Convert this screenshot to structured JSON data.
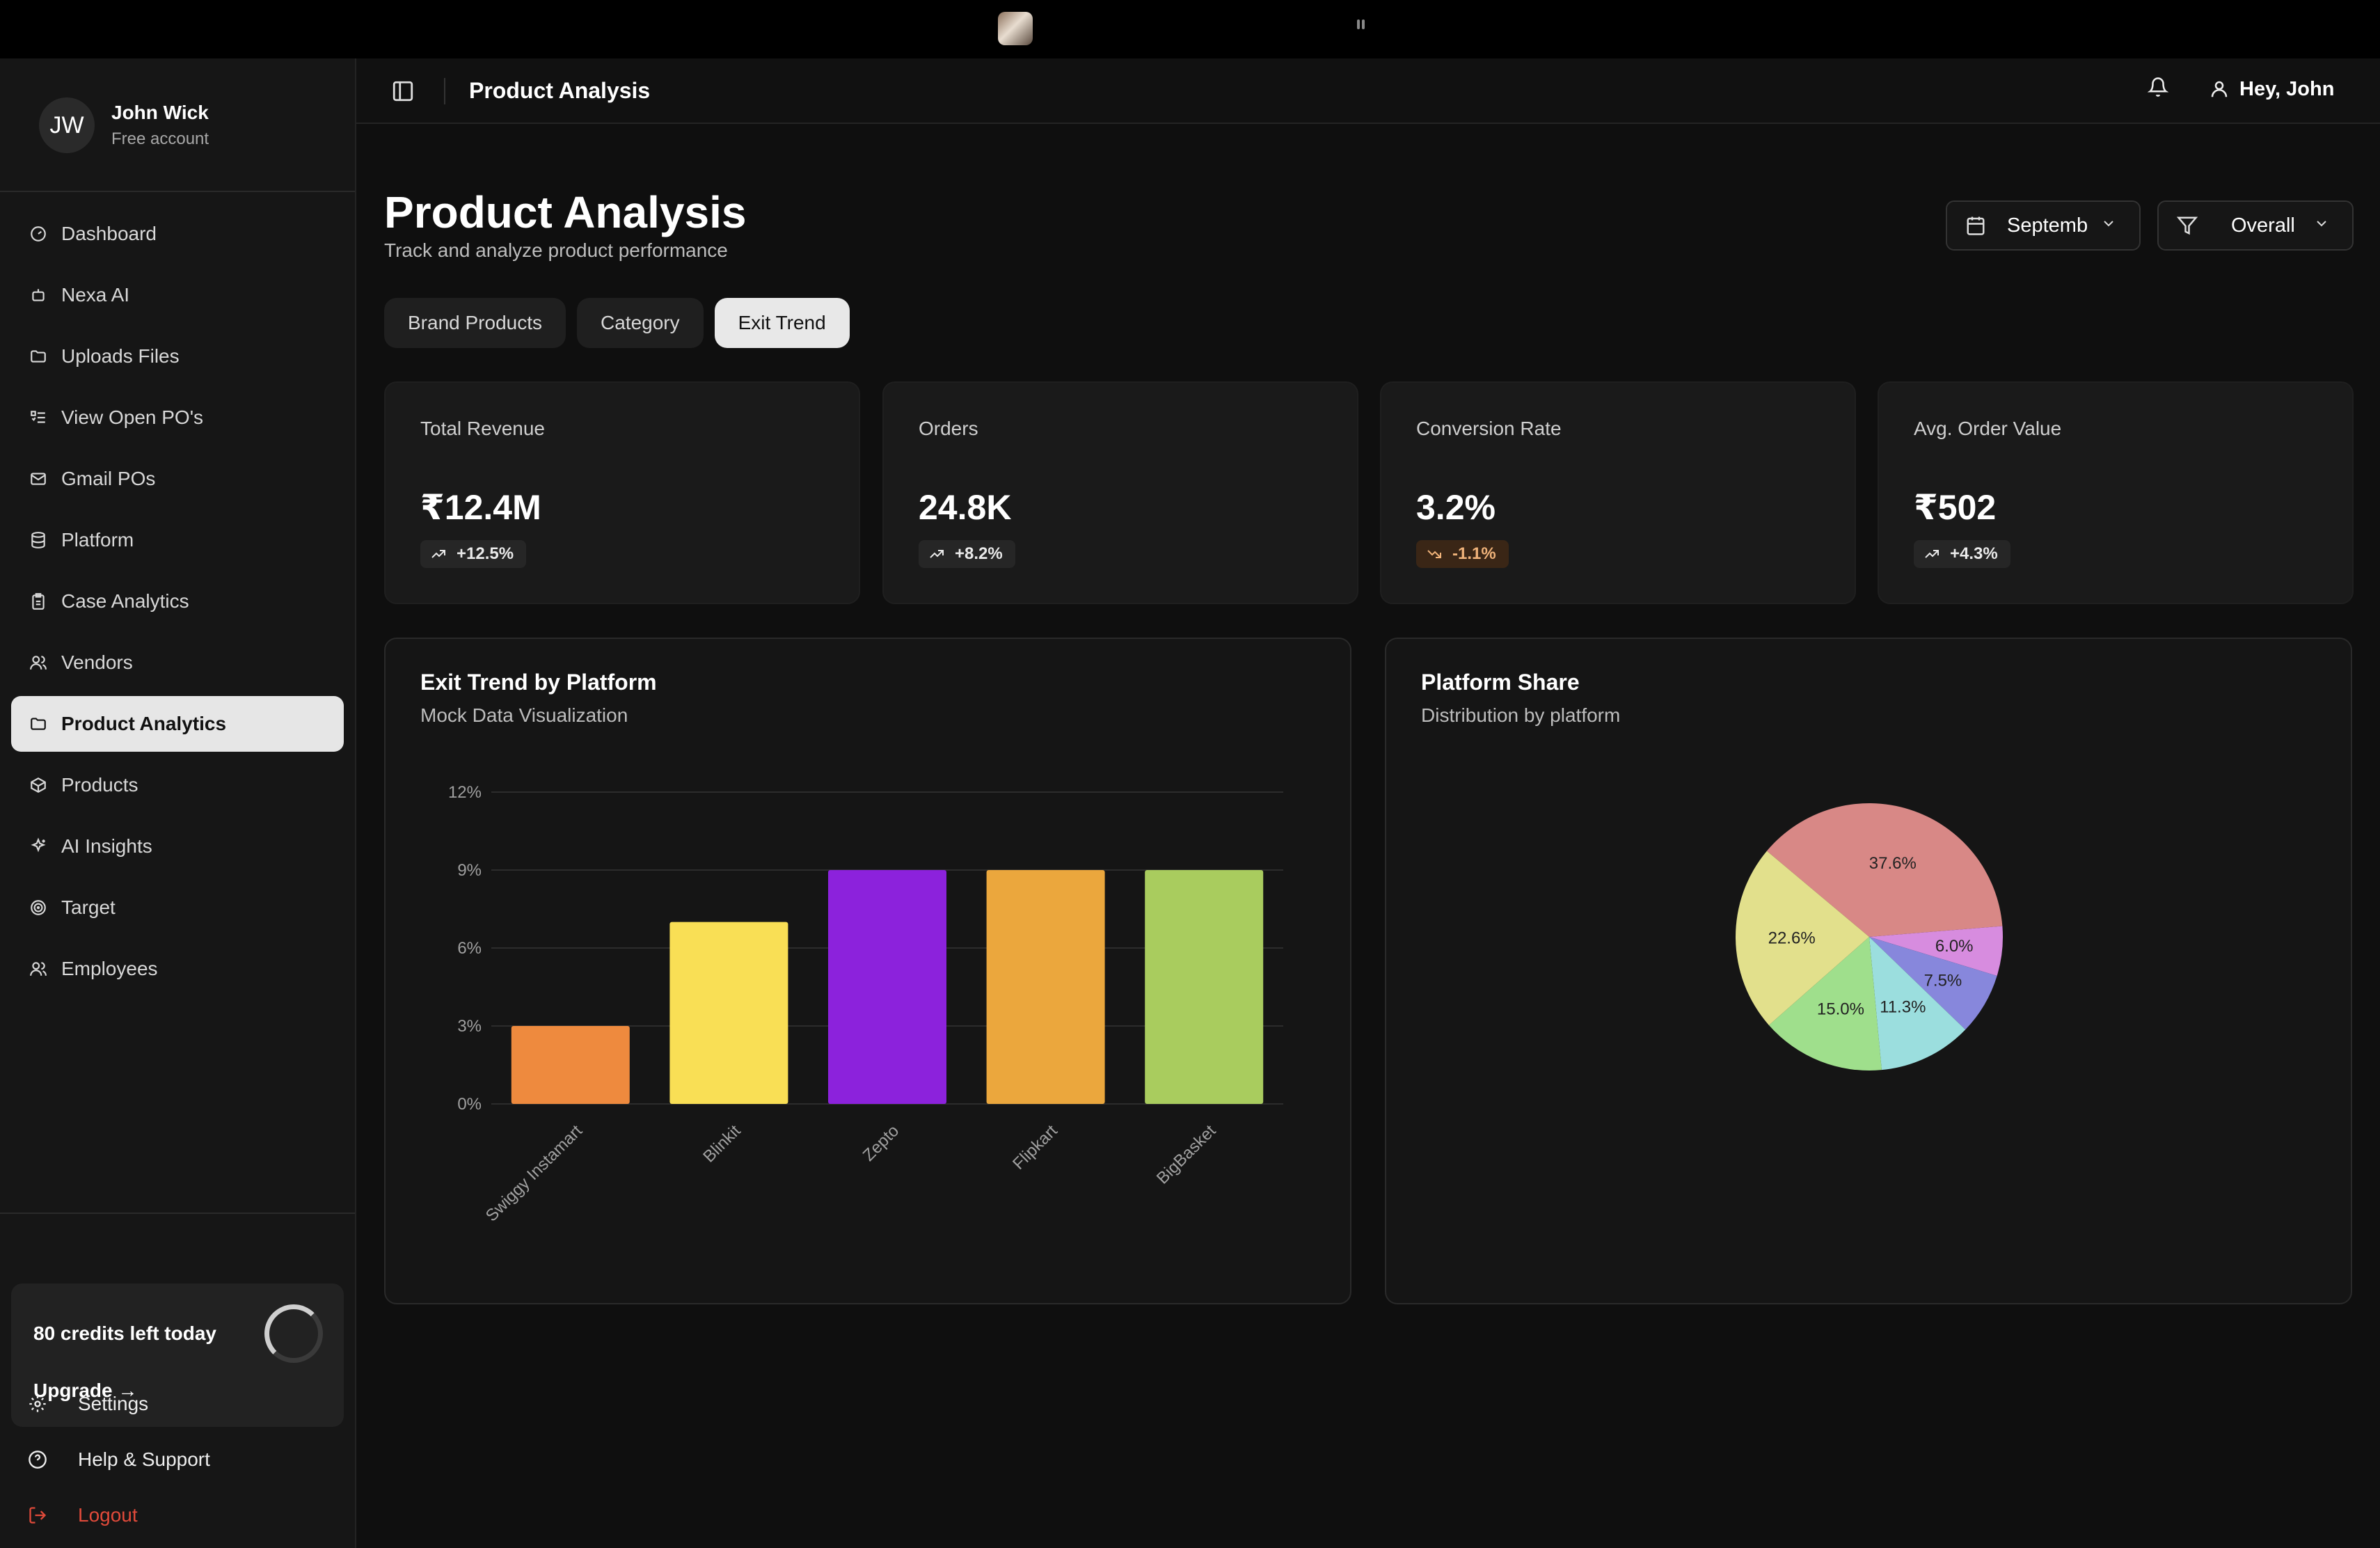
{
  "user": {
    "initials": "JW",
    "name": "John Wick",
    "plan": "Free account"
  },
  "nav": [
    {
      "label": "Dashboard",
      "icon": "gauge-icon"
    },
    {
      "label": "Nexa AI",
      "icon": "bot-icon"
    },
    {
      "label": "Uploads Files",
      "icon": "folder-icon"
    },
    {
      "label": "View Open PO's",
      "icon": "list-icon"
    },
    {
      "label": "Gmail POs",
      "icon": "mail-icon"
    },
    {
      "label": "Platform",
      "icon": "database-icon"
    },
    {
      "label": "Case Analytics",
      "icon": "clipboard-icon"
    },
    {
      "label": "Vendors",
      "icon": "users-icon"
    },
    {
      "label": "Product Analytics",
      "icon": "folder-icon",
      "active": true
    },
    {
      "label": "Products",
      "icon": "box-icon"
    },
    {
      "label": "AI Insights",
      "icon": "sparkles-icon"
    },
    {
      "label": "Target",
      "icon": "target-icon"
    },
    {
      "label": "Employees",
      "icon": "users-icon"
    }
  ],
  "credits": {
    "text": "80 credits left today",
    "upgrade": "Upgrade →"
  },
  "bottom_links": {
    "settings": "Settings",
    "help": "Help & Support",
    "logout": "Logout"
  },
  "header": {
    "title": "Product Analysis",
    "greeting": "Hey, John"
  },
  "page": {
    "title": "Product Analysis",
    "subtitle": "Track and analyze product performance"
  },
  "controls": {
    "month": "Septemb",
    "filter": "Overall"
  },
  "tabs": [
    {
      "label": "Brand Products"
    },
    {
      "label": "Category"
    },
    {
      "label": "Exit Trend",
      "active": true
    }
  ],
  "kpis": [
    {
      "label": "Total Revenue",
      "value": "₹12.4M",
      "change": "+12.5%",
      "trend": "up"
    },
    {
      "label": "Orders",
      "value": "24.8K",
      "change": "+8.2%",
      "trend": "up"
    },
    {
      "label": "Conversion Rate",
      "value": "3.2%",
      "change": "-1.1%",
      "trend": "down"
    },
    {
      "label": "Avg. Order Value",
      "value": "₹502",
      "change": "+4.3%",
      "trend": "up"
    }
  ],
  "panels": {
    "bar": {
      "title": "Exit Trend by Platform",
      "subtitle": "Mock Data Visualization"
    },
    "pie": {
      "title": "Platform Share",
      "subtitle": "Distribution by platform"
    }
  },
  "chart_data": [
    {
      "type": "bar",
      "categories": [
        "Swiggy Instamart",
        "Blinkit",
        "Zepto",
        "Flipkart",
        "BigBasket"
      ],
      "values": [
        3,
        7,
        9,
        9,
        9
      ],
      "colors": [
        "#ee8a3e",
        "#f9df55",
        "#8c22dc",
        "#eba73d",
        "#a9cc5e"
      ],
      "yticks": [
        "0%",
        "3%",
        "6%",
        "9%",
        "12%"
      ],
      "ylim": [
        0,
        12
      ],
      "grid": true
    },
    {
      "type": "pie",
      "labels": [
        "37.6%",
        "6.0%",
        "7.5%",
        "11.3%",
        "15.0%",
        "22.6%"
      ],
      "values": [
        37.6,
        6.0,
        7.5,
        11.3,
        15.0,
        22.6
      ],
      "colors": [
        "#d88886",
        "#d78cdf",
        "#8787dc",
        "#9bdede",
        "#9fdf8c",
        "#e2e08c"
      ]
    }
  ]
}
